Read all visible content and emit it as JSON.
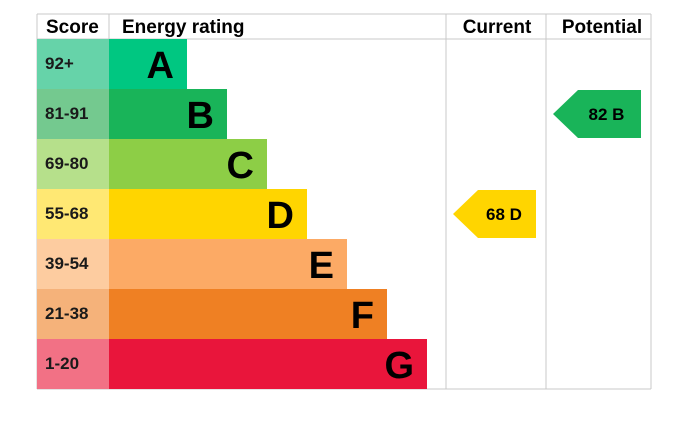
{
  "headers": {
    "score": "Score",
    "rating": "Energy rating",
    "current": "Current",
    "potential": "Potential"
  },
  "chart_data": {
    "type": "bar",
    "bands": [
      {
        "score_range": "92+",
        "letter": "A",
        "bar_color": "#00c781",
        "score_color": "#66d3a9"
      },
      {
        "score_range": "81-91",
        "letter": "B",
        "bar_color": "#19b459",
        "score_color": "#74c98f"
      },
      {
        "score_range": "69-80",
        "letter": "C",
        "bar_color": "#8dce46",
        "score_color": "#b6e08b"
      },
      {
        "score_range": "55-68",
        "letter": "D",
        "bar_color": "#ffd500",
        "score_color": "#ffe873"
      },
      {
        "score_range": "39-54",
        "letter": "E",
        "bar_color": "#fcaa65",
        "score_color": "#fdcca0"
      },
      {
        "score_range": "21-38",
        "letter": "F",
        "bar_color": "#ef8023",
        "score_color": "#f5b27a"
      },
      {
        "score_range": "1-20",
        "letter": "G",
        "bar_color": "#e9153b",
        "score_color": "#f27185"
      }
    ],
    "current": {
      "value": 68,
      "letter": "D",
      "label": "68  D",
      "color": "#ffd500"
    },
    "potential": {
      "value": 82,
      "letter": "B",
      "label": "82  B",
      "color": "#19b459"
    }
  }
}
